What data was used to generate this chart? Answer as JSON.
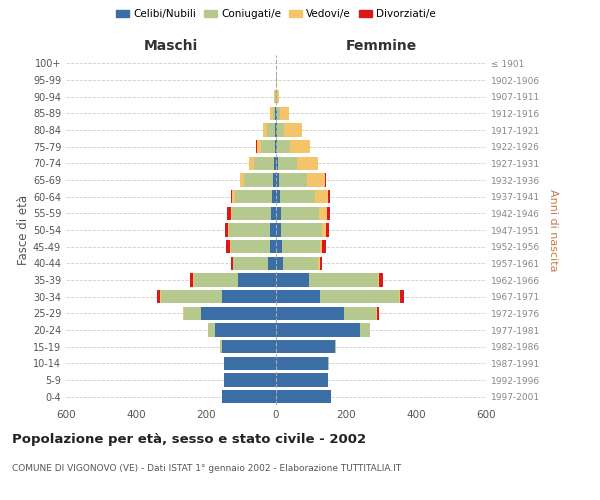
{
  "age_groups": [
    "0-4",
    "5-9",
    "10-14",
    "15-19",
    "20-24",
    "25-29",
    "30-34",
    "35-39",
    "40-44",
    "45-49",
    "50-54",
    "55-59",
    "60-64",
    "65-69",
    "70-74",
    "75-79",
    "80-84",
    "85-89",
    "90-94",
    "95-99",
    "100+"
  ],
  "birth_years": [
    "1997-2001",
    "1992-1996",
    "1987-1991",
    "1982-1986",
    "1977-1981",
    "1972-1976",
    "1967-1971",
    "1962-1966",
    "1957-1961",
    "1952-1956",
    "1947-1951",
    "1942-1946",
    "1937-1941",
    "1932-1936",
    "1927-1931",
    "1922-1926",
    "1917-1921",
    "1912-1916",
    "1907-1911",
    "1902-1906",
    "≤ 1901"
  ],
  "maschi_celibi": [
    155,
    148,
    148,
    155,
    175,
    215,
    155,
    110,
    23,
    18,
    17,
    14,
    12,
    10,
    6,
    4,
    3,
    2,
    0,
    0,
    0
  ],
  "maschi_coniugati": [
    0,
    0,
    2,
    5,
    18,
    48,
    175,
    125,
    100,
    112,
    118,
    112,
    105,
    82,
    58,
    38,
    22,
    8,
    4,
    1,
    1
  ],
  "maschi_vedovi": [
    0,
    0,
    0,
    0,
    0,
    2,
    2,
    2,
    1,
    2,
    3,
    4,
    8,
    10,
    12,
    12,
    12,
    8,
    2,
    0,
    0
  ],
  "maschi_divorziati": [
    0,
    0,
    0,
    0,
    0,
    2,
    8,
    10,
    5,
    10,
    8,
    10,
    3,
    2,
    2,
    2,
    0,
    0,
    0,
    0,
    0
  ],
  "femmine_nubili": [
    158,
    148,
    148,
    168,
    240,
    195,
    125,
    95,
    20,
    17,
    15,
    13,
    10,
    8,
    5,
    4,
    3,
    2,
    1,
    0,
    0
  ],
  "femmine_coniugate": [
    0,
    0,
    2,
    4,
    28,
    90,
    225,
    195,
    100,
    110,
    115,
    110,
    100,
    80,
    55,
    35,
    20,
    8,
    3,
    1,
    0
  ],
  "femmine_vedove": [
    0,
    0,
    0,
    0,
    0,
    3,
    5,
    5,
    5,
    5,
    12,
    22,
    38,
    52,
    60,
    58,
    52,
    28,
    5,
    1,
    0
  ],
  "femmine_divorziate": [
    0,
    0,
    0,
    0,
    0,
    5,
    10,
    10,
    5,
    10,
    10,
    10,
    5,
    2,
    0,
    0,
    0,
    0,
    0,
    0,
    0
  ],
  "colors": {
    "celibi": "#3a6ea5",
    "coniugati": "#b5c98e",
    "vedovi": "#f5c36a",
    "divorziati": "#d9191c"
  },
  "title": "Popolazione per età, sesso e stato civile - 2002",
  "subtitle": "COMUNE DI VIGONOVO (VE) - Dati ISTAT 1° gennaio 2002 - Elaborazione TUTTITALIA.IT",
  "label_maschi": "Maschi",
  "label_femmine": "Femmine",
  "ylabel_left": "Fasce di età",
  "ylabel_right": "Anni di nascita",
  "legend_labels": [
    "Celibi/Nubili",
    "Coniugati/e",
    "Vedovi/e",
    "Divorziati/e"
  ],
  "xlim": 600,
  "background_color": "#ffffff",
  "grid_color": "#cccccc"
}
